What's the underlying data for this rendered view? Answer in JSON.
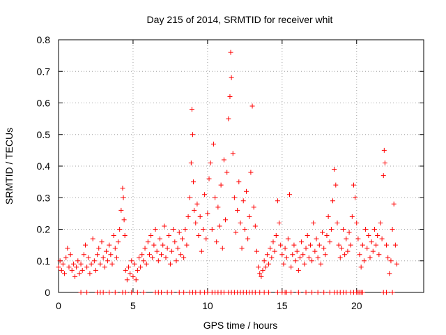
{
  "chart_data": {
    "type": "scatter",
    "title": "Day 215 of 2014, SRMTID for receiver whit",
    "xlabel": "GPS time / hours",
    "ylabel": "SRMTID / TECUs",
    "xlim": [
      0,
      24.5
    ],
    "ylim": [
      0,
      0.8
    ],
    "x_ticks": [
      0,
      5,
      10,
      15,
      20
    ],
    "y_ticks": [
      0,
      0.1,
      0.2,
      0.3,
      0.4,
      0.5,
      0.6,
      0.7,
      0.8
    ],
    "x_tick_labels": [
      "0",
      "5",
      "10",
      "15",
      "20"
    ],
    "y_tick_labels": [
      "0",
      "0.1",
      "0.2",
      "0.3",
      "0.4",
      "0.5",
      "0.6",
      "0.7",
      "0.8"
    ],
    "grid": true,
    "marker": "+",
    "series": [
      {
        "name": "SRMTID",
        "color": "#ff0000",
        "points": [
          [
            0.0,
            0.08
          ],
          [
            0.1,
            0.1
          ],
          [
            0.2,
            0.07
          ],
          [
            0.3,
            0.09
          ],
          [
            0.4,
            0.06
          ],
          [
            0.5,
            0.11
          ],
          [
            0.6,
            0.14
          ],
          [
            0.7,
            0.08
          ],
          [
            0.8,
            0.12
          ],
          [
            0.9,
            0.07
          ],
          [
            1.0,
            0.09
          ],
          [
            1.1,
            0.05
          ],
          [
            1.2,
            0.08
          ],
          [
            1.3,
            0.1
          ],
          [
            1.4,
            0.06
          ],
          [
            1.5,
            0.09
          ],
          [
            1.6,
            0.07
          ],
          [
            1.7,
            0.12
          ],
          [
            1.8,
            0.15
          ],
          [
            1.9,
            0.08
          ],
          [
            2.0,
            0.11
          ],
          [
            2.1,
            0.06
          ],
          [
            2.2,
            0.09
          ],
          [
            2.3,
            0.17
          ],
          [
            2.4,
            0.1
          ],
          [
            2.5,
            0.07
          ],
          [
            2.6,
            0.12
          ],
          [
            2.7,
            0.14
          ],
          [
            2.8,
            0.09
          ],
          [
            2.9,
            0.16
          ],
          [
            3.0,
            0.11
          ],
          [
            3.1,
            0.08
          ],
          [
            3.2,
            0.13
          ],
          [
            3.3,
            0.1
          ],
          [
            3.4,
            0.15
          ],
          [
            3.5,
            0.12
          ],
          [
            3.6,
            0.09
          ],
          [
            3.7,
            0.18
          ],
          [
            3.8,
            0.14
          ],
          [
            3.9,
            0.11
          ],
          [
            4.0,
            0.16
          ],
          [
            4.1,
            0.2
          ],
          [
            4.2,
            0.26
          ],
          [
            4.3,
            0.33
          ],
          [
            4.35,
            0.3
          ],
          [
            4.4,
            0.23
          ],
          [
            4.45,
            0.18
          ],
          [
            4.5,
            0.07
          ],
          [
            4.6,
            0.04
          ],
          [
            4.7,
            0.08
          ],
          [
            4.8,
            0.06
          ],
          [
            4.9,
            0.1
          ],
          [
            5.0,
            0.05
          ],
          [
            5.1,
            0.09
          ],
          [
            5.2,
            0.04
          ],
          [
            5.3,
            0.07
          ],
          [
            5.4,
            0.11
          ],
          [
            5.5,
            0.08
          ],
          [
            5.6,
            0.12
          ],
          [
            5.7,
            0.1
          ],
          [
            5.8,
            0.14
          ],
          [
            5.9,
            0.09
          ],
          [
            6.0,
            0.16
          ],
          [
            6.1,
            0.12
          ],
          [
            6.2,
            0.18
          ],
          [
            6.3,
            0.11
          ],
          [
            6.4,
            0.15
          ],
          [
            6.5,
            0.2
          ],
          [
            6.6,
            0.13
          ],
          [
            6.7,
            0.1
          ],
          [
            6.8,
            0.17
          ],
          [
            6.9,
            0.12
          ],
          [
            7.0,
            0.15
          ],
          [
            7.1,
            0.21
          ],
          [
            7.2,
            0.11
          ],
          [
            7.3,
            0.14
          ],
          [
            7.4,
            0.18
          ],
          [
            7.5,
            0.09
          ],
          [
            7.6,
            0.13
          ],
          [
            7.7,
            0.2
          ],
          [
            7.8,
            0.16
          ],
          [
            7.9,
            0.1
          ],
          [
            8.0,
            0.14
          ],
          [
            8.1,
            0.19
          ],
          [
            8.2,
            0.12
          ],
          [
            8.3,
            0.17
          ],
          [
            8.4,
            0.11
          ],
          [
            8.5,
            0.2
          ],
          [
            8.6,
            0.15
          ],
          [
            8.7,
            0.24
          ],
          [
            8.8,
            0.3
          ],
          [
            8.9,
            0.41
          ],
          [
            8.95,
            0.58
          ],
          [
            9.0,
            0.5
          ],
          [
            9.05,
            0.35
          ],
          [
            9.1,
            0.26
          ],
          [
            9.2,
            0.22
          ],
          [
            9.3,
            0.28
          ],
          [
            9.4,
            0.18
          ],
          [
            9.5,
            0.24
          ],
          [
            9.6,
            0.13
          ],
          [
            9.7,
            0.2
          ],
          [
            9.8,
            0.31
          ],
          [
            9.9,
            0.17
          ],
          [
            10.0,
            0.25
          ],
          [
            10.1,
            0.36
          ],
          [
            10.2,
            0.41
          ],
          [
            10.3,
            0.2
          ],
          [
            10.4,
            0.47
          ],
          [
            10.5,
            0.3
          ],
          [
            10.6,
            0.16
          ],
          [
            10.7,
            0.27
          ],
          [
            10.8,
            0.21
          ],
          [
            10.9,
            0.34
          ],
          [
            11.0,
            0.14
          ],
          [
            11.1,
            0.42
          ],
          [
            11.2,
            0.23
          ],
          [
            11.3,
            0.38
          ],
          [
            11.4,
            0.55
          ],
          [
            11.5,
            0.62
          ],
          [
            11.55,
            0.76
          ],
          [
            11.6,
            0.68
          ],
          [
            11.7,
            0.44
          ],
          [
            11.8,
            0.3
          ],
          [
            11.9,
            0.19
          ],
          [
            12.0,
            0.26
          ],
          [
            12.1,
            0.35
          ],
          [
            12.2,
            0.22
          ],
          [
            12.3,
            0.14
          ],
          [
            12.4,
            0.29
          ],
          [
            12.5,
            0.2
          ],
          [
            12.6,
            0.32
          ],
          [
            12.7,
            0.17
          ],
          [
            12.8,
            0.24
          ],
          [
            12.9,
            0.38
          ],
          [
            13.0,
            0.59
          ],
          [
            13.1,
            0.27
          ],
          [
            13.2,
            0.21
          ],
          [
            13.3,
            0.13
          ],
          [
            13.4,
            0.08
          ],
          [
            13.5,
            0.06
          ],
          [
            13.6,
            0.05
          ],
          [
            13.7,
            0.07
          ],
          [
            13.8,
            0.1
          ],
          [
            13.9,
            0.08
          ],
          [
            14.0,
            0.12
          ],
          [
            14.1,
            0.09
          ],
          [
            14.2,
            0.14
          ],
          [
            14.3,
            0.11
          ],
          [
            14.4,
            0.16
          ],
          [
            14.5,
            0.13
          ],
          [
            14.6,
            0.18
          ],
          [
            14.7,
            0.29
          ],
          [
            14.8,
            0.22
          ],
          [
            14.9,
            0.15
          ],
          [
            15.0,
            0.12
          ],
          [
            15.1,
            0.09
          ],
          [
            15.2,
            0.14
          ],
          [
            15.3,
            0.11
          ],
          [
            15.4,
            0.17
          ],
          [
            15.5,
            0.31
          ],
          [
            15.6,
            0.08
          ],
          [
            15.7,
            0.12
          ],
          [
            15.8,
            0.15
          ],
          [
            15.9,
            0.1
          ],
          [
            16.0,
            0.13
          ],
          [
            16.1,
            0.07
          ],
          [
            16.2,
            0.11
          ],
          [
            16.3,
            0.16
          ],
          [
            16.4,
            0.12
          ],
          [
            16.5,
            0.09
          ],
          [
            16.6,
            0.14
          ],
          [
            16.7,
            0.18
          ],
          [
            16.8,
            0.11
          ],
          [
            16.9,
            0.15
          ],
          [
            17.0,
            0.1
          ],
          [
            17.1,
            0.22
          ],
          [
            17.2,
            0.13
          ],
          [
            17.3,
            0.17
          ],
          [
            17.4,
            0.11
          ],
          [
            17.5,
            0.15
          ],
          [
            17.6,
            0.09
          ],
          [
            17.7,
            0.19
          ],
          [
            17.8,
            0.14
          ],
          [
            17.9,
            0.12
          ],
          [
            18.0,
            0.18
          ],
          [
            18.1,
            0.24
          ],
          [
            18.2,
            0.16
          ],
          [
            18.3,
            0.2
          ],
          [
            18.4,
            0.29
          ],
          [
            18.5,
            0.39
          ],
          [
            18.6,
            0.34
          ],
          [
            18.7,
            0.22
          ],
          [
            18.8,
            0.15
          ],
          [
            18.9,
            0.11
          ],
          [
            19.0,
            0.14
          ],
          [
            19.1,
            0.2
          ],
          [
            19.2,
            0.12
          ],
          [
            19.3,
            0.17
          ],
          [
            19.4,
            0.13
          ],
          [
            19.5,
            0.19
          ],
          [
            19.6,
            0.15
          ],
          [
            19.7,
            0.24
          ],
          [
            19.8,
            0.34
          ],
          [
            19.9,
            0.3
          ],
          [
            20.0,
            0.22
          ],
          [
            20.1,
            0.17
          ],
          [
            20.2,
            0.12
          ],
          [
            20.3,
            0.08
          ],
          [
            20.4,
            0.15
          ],
          [
            20.5,
            0.1
          ],
          [
            20.6,
            0.2
          ],
          [
            20.7,
            0.14
          ],
          [
            20.8,
            0.18
          ],
          [
            20.9,
            0.11
          ],
          [
            21.0,
            0.16
          ],
          [
            21.1,
            0.13
          ],
          [
            21.2,
            0.2
          ],
          [
            21.3,
            0.15
          ],
          [
            21.4,
            0.18
          ],
          [
            21.5,
            0.12
          ],
          [
            21.6,
            0.22
          ],
          [
            21.7,
            0.17
          ],
          [
            21.8,
            0.37
          ],
          [
            21.85,
            0.45
          ],
          [
            21.9,
            0.41
          ],
          [
            22.0,
            0.15
          ],
          [
            22.1,
            0.11
          ],
          [
            22.2,
            0.06
          ],
          [
            22.3,
            0.1
          ],
          [
            22.4,
            0.2
          ],
          [
            22.5,
            0.28
          ],
          [
            22.6,
            0.15
          ],
          [
            22.7,
            0.09
          ]
        ],
        "zero_points_x": [
          1.5,
          1.9,
          2.6,
          2.8,
          3.0,
          3.4,
          3.8,
          4.3,
          4.5,
          4.9,
          5.3,
          5.7,
          6.5,
          6.7,
          6.9,
          7.3,
          7.6,
          8.1,
          8.4,
          8.8,
          9.0,
          9.2,
          9.5,
          9.8,
          10.0,
          10.3,
          10.5,
          10.7,
          10.9,
          11.1,
          11.4,
          11.6,
          11.8,
          12.0,
          12.2,
          12.4,
          12.6,
          12.8,
          13.0,
          13.2,
          13.5,
          13.8,
          14.1,
          14.7,
          15.0,
          15.2,
          15.3,
          15.6,
          16.1,
          16.6,
          17.0,
          17.4,
          17.8,
          18.2,
          18.5,
          18.7,
          18.9,
          19.1,
          19.3,
          19.6,
          19.8,
          20.0,
          20.1,
          20.2,
          20.3,
          20.4,
          21.8,
          22.0,
          22.4
        ]
      }
    ]
  }
}
